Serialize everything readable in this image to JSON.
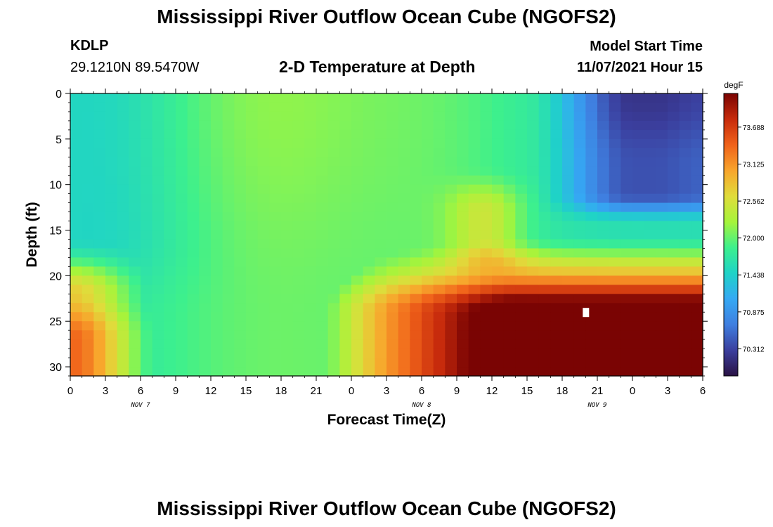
{
  "page": {
    "title": "Mississippi River Outflow Ocean Cube (NGOFS2)",
    "title_repeat": "Mississippi River Outflow Ocean Cube (NGOFS2)",
    "station": "KDLP",
    "coords": "29.1210N  89.5470W",
    "subtitle": "2-D Temperature at Depth",
    "model_start_label": "Model Start Time",
    "model_start_value": "11/07/2021 Hour 15"
  },
  "chart_data": {
    "type": "heatmap",
    "xlabel": "Forecast Time(Z)",
    "ylabel": "Depth (ft)",
    "x_range_hours": [
      0,
      54
    ],
    "x_ticks": [
      "0",
      "3",
      "6",
      "9",
      "12",
      "15",
      "18",
      "21",
      "0",
      "3",
      "6",
      "9",
      "12",
      "15",
      "18",
      "21",
      "0",
      "3",
      "6"
    ],
    "date_labels": [
      {
        "label": "NOV 7",
        "tick_index": 2
      },
      {
        "label": "NOV 8",
        "tick_index": 10
      },
      {
        "label": "NOV 9",
        "tick_index": 15
      }
    ],
    "y_range": [
      0,
      31
    ],
    "y_reversed": true,
    "y_ticks": [
      0,
      5,
      10,
      15,
      20,
      25,
      30
    ],
    "colorbar": {
      "unit": "degF",
      "range": [
        69.9,
        74.2
      ],
      "ticks": [
        "73.688",
        "73.125",
        "72.562",
        "72.000",
        "71.438",
        "70.875",
        "70.312"
      ],
      "colors": [
        "#2a1244",
        "#3b3f9e",
        "#3f7fe0",
        "#35a9f4",
        "#1fd3c7",
        "#3df08d",
        "#a6f43b",
        "#e0dc3b",
        "#f8a52c",
        "#f0621a",
        "#c72b0c",
        "#7a0403"
      ]
    },
    "marker": {
      "hour": 44,
      "depth": 24
    }
  }
}
